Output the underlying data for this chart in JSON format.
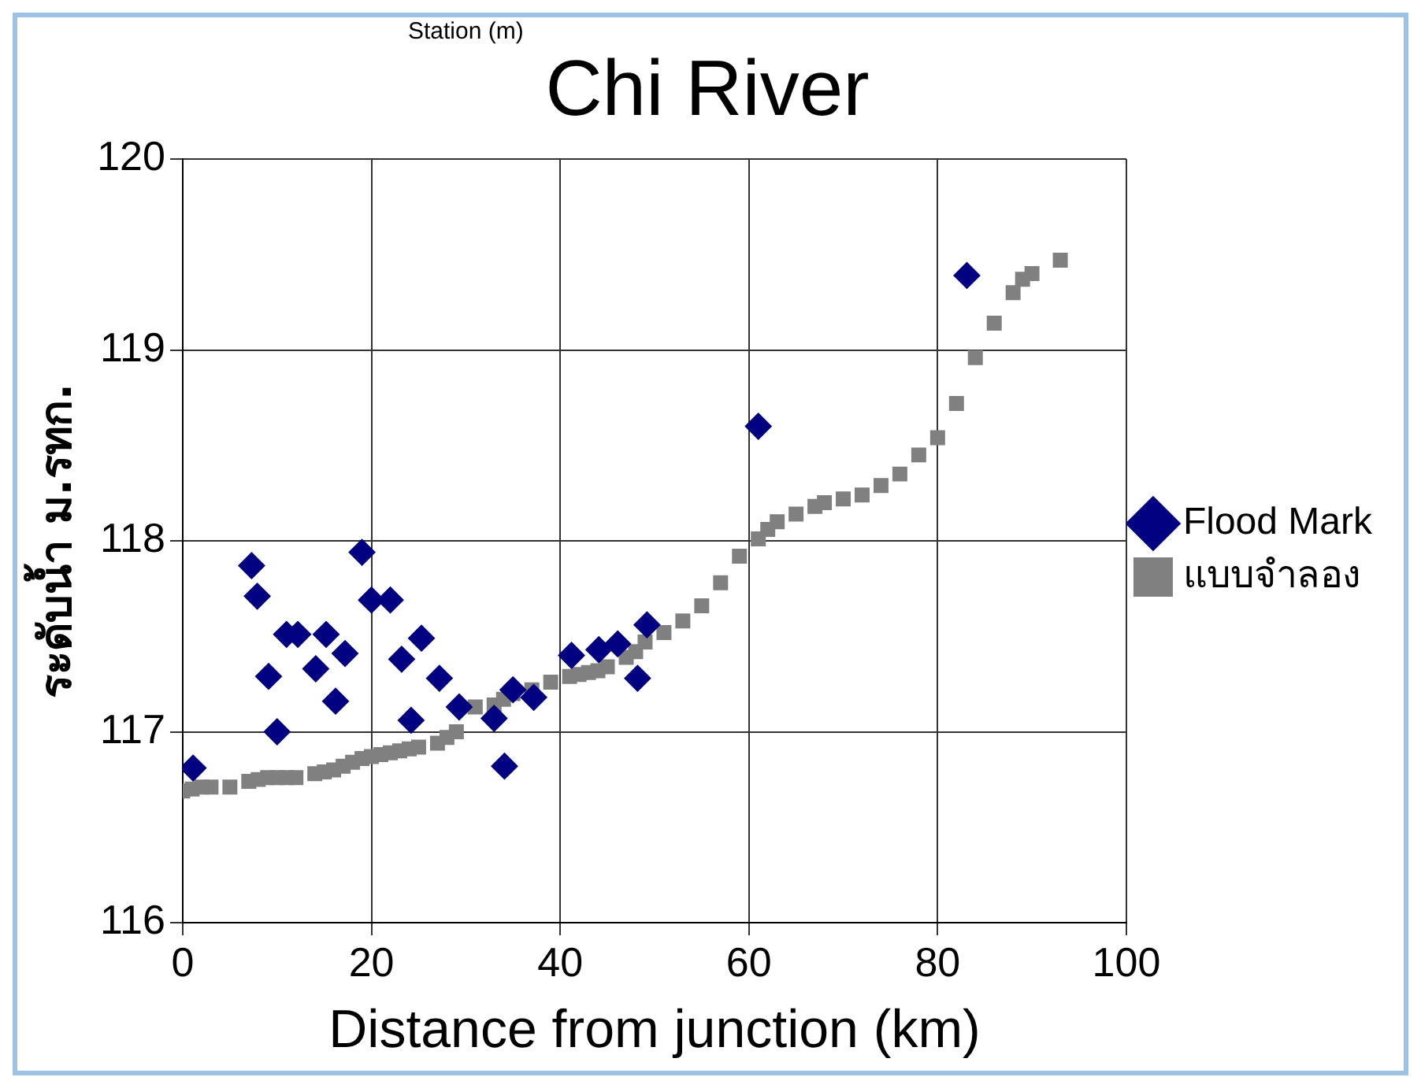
{
  "chart_data": {
    "type": "scatter",
    "title": "Chi River",
    "annotations": [
      "Station (m)"
    ],
    "xlabel": "Distance from junction (km)",
    "ylabel": "ระดับน้ำ ม.รทก.",
    "xlim": [
      0,
      100
    ],
    "xticks": [
      0,
      20,
      40,
      60,
      80,
      100
    ],
    "ylim": [
      116,
      120
    ],
    "yticks": [
      116,
      117,
      118,
      119,
      120
    ],
    "grid": true,
    "legend": "right",
    "series": [
      {
        "name": "Flood Mark",
        "color": "#000080",
        "marker": "diamond",
        "x": [
          1.1,
          7.3,
          7.9,
          9.1,
          10,
          11,
          12.2,
          14.1,
          15.2,
          16.2,
          17.2,
          19,
          20,
          22,
          23.2,
          24.2,
          25.3,
          27.2,
          29.3,
          33,
          34.1,
          35,
          37.2,
          41.2,
          44.1,
          46.1,
          48.2,
          49.2,
          61,
          83.1
        ],
        "values": [
          116.81,
          117.87,
          117.71,
          117.29,
          117.0,
          117.51,
          117.51,
          117.33,
          117.51,
          117.16,
          117.41,
          117.94,
          117.69,
          117.69,
          117.38,
          117.06,
          117.49,
          117.28,
          117.13,
          117.07,
          116.82,
          117.22,
          117.18,
          117.4,
          117.43,
          117.46,
          117.28,
          117.56,
          118.6,
          119.39
        ]
      },
      {
        "name": "แบบจำลอง",
        "color": "#808080",
        "marker": "square",
        "x": [
          0,
          1,
          2,
          3,
          5,
          7,
          8,
          9,
          10,
          11,
          12,
          14,
          15,
          16,
          17,
          18,
          19,
          20,
          21,
          22,
          23,
          24,
          25,
          27,
          28,
          29,
          31,
          33,
          34,
          35,
          37,
          39,
          41,
          42,
          43,
          44,
          45,
          47,
          48,
          49,
          51,
          53,
          55,
          57,
          59,
          61,
          62,
          63,
          65,
          67,
          68,
          70,
          72,
          74,
          76,
          78,
          80,
          82,
          84,
          86,
          88,
          89,
          90,
          93
        ],
        "values": [
          116.69,
          116.7,
          116.71,
          116.71,
          116.71,
          116.74,
          116.75,
          116.76,
          116.76,
          116.76,
          116.76,
          116.78,
          116.79,
          116.8,
          116.82,
          116.84,
          116.86,
          116.87,
          116.88,
          116.89,
          116.9,
          116.91,
          116.92,
          116.94,
          116.97,
          117.0,
          117.13,
          117.14,
          117.17,
          117.2,
          117.22,
          117.26,
          117.29,
          117.3,
          117.31,
          117.32,
          117.34,
          117.39,
          117.42,
          117.47,
          117.52,
          117.58,
          117.66,
          117.78,
          117.92,
          118.01,
          118.06,
          118.1,
          118.14,
          118.18,
          118.2,
          118.22,
          118.24,
          118.29,
          118.35,
          118.45,
          118.54,
          118.72,
          118.96,
          119.14,
          119.3,
          119.37,
          119.4,
          119.47
        ]
      }
    ]
  }
}
